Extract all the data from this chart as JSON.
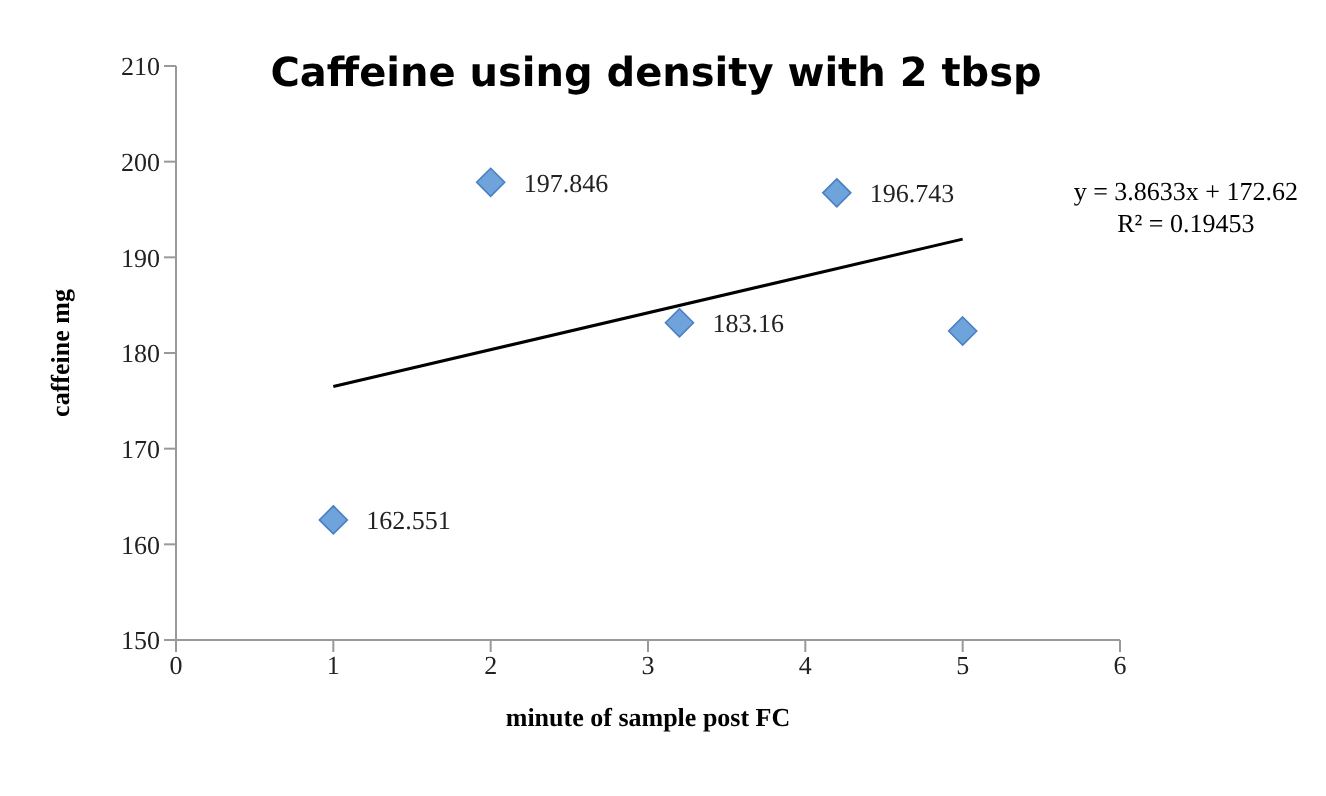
{
  "chart_data": {
    "type": "scatter",
    "title": "Caffeine using density with 2 tbsp",
    "xlabel": "minute of sample post FC",
    "ylabel": "caffeine mg",
    "xlim": [
      0,
      6
    ],
    "xticks": [
      0,
      1,
      2,
      3,
      4,
      5,
      6
    ],
    "ylim": [
      150,
      210
    ],
    "yticks": [
      150,
      160,
      170,
      180,
      190,
      200,
      210
    ],
    "grid": false,
    "marker": "diamond",
    "series": [
      {
        "color": "#6fa3dc",
        "x": [
          1,
          2,
          3.2,
          4.2,
          5
        ],
        "values": [
          162.551,
          197.846,
          183.16,
          196.743,
          182.3
        ],
        "value_labels": [
          "162.551",
          "197.846",
          "183.16",
          "196.743",
          null
        ]
      },
      {
        "type": "line",
        "marker": "none",
        "color": "#000000",
        "x": [
          1,
          5
        ],
        "values": [
          176.5,
          191.9
        ]
      }
    ],
    "annotations": [
      "y = 3.8633x + 172.62",
      "R² = 0.19453"
    ]
  }
}
